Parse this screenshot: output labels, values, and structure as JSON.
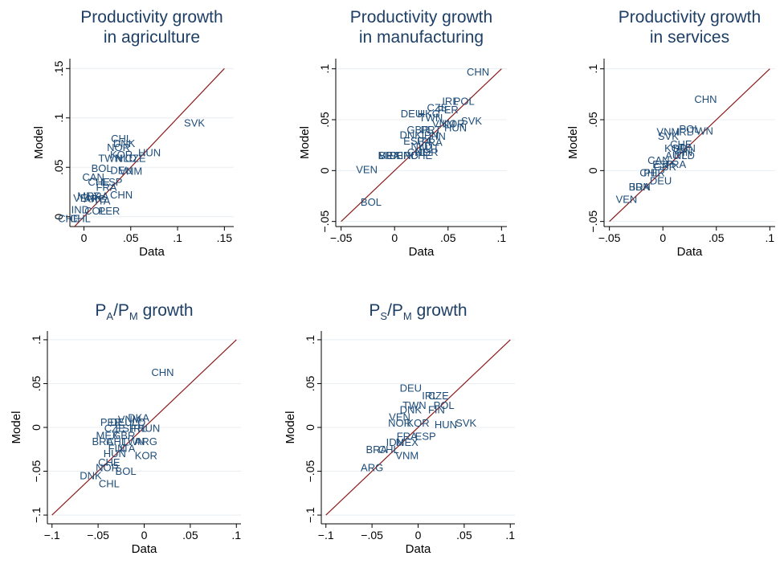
{
  "chart_data": [
    {
      "type": "scatter",
      "title": [
        "Productivity growth",
        "in agriculture"
      ],
      "xlabel": "Data",
      "ylabel": "Model",
      "xlim": [
        -0.015,
        0.16
      ],
      "ylim": [
        -0.01,
        0.16
      ],
      "xticks": [
        0,
        0.05,
        0.1,
        0.15
      ],
      "xtick_labels": [
        "0",
        ".05",
        ".1",
        ".15"
      ],
      "yticks": [
        0,
        0.05,
        0.1,
        0.15
      ],
      "ytick_labels": [
        "0",
        ".05",
        ".1",
        ".15"
      ],
      "fit_line": [
        [
          -0.01,
          -0.01
        ],
        [
          0.15,
          0.15
        ]
      ],
      "grid": true,
      "points": [
        {
          "label": "SVK",
          "x": 0.118,
          "y": 0.095
        },
        {
          "label": "HUN",
          "x": 0.07,
          "y": 0.065
        },
        {
          "label": "CHL",
          "x": 0.04,
          "y": 0.079
        },
        {
          "label": "DNK",
          "x": 0.043,
          "y": 0.074
        },
        {
          "label": "NOR",
          "x": 0.037,
          "y": 0.07
        },
        {
          "label": "KOR",
          "x": 0.04,
          "y": 0.063
        },
        {
          "label": "TWN",
          "x": 0.028,
          "y": 0.059
        },
        {
          "label": "NLD",
          "x": 0.045,
          "y": 0.059
        },
        {
          "label": "CZE",
          "x": 0.055,
          "y": 0.059
        },
        {
          "label": "BOL",
          "x": 0.019,
          "y": 0.049
        },
        {
          "label": "DEU",
          "x": 0.04,
          "y": 0.047
        },
        {
          "label": "VNM",
          "x": 0.05,
          "y": 0.046
        },
        {
          "label": "CAN",
          "x": 0.01,
          "y": 0.04
        },
        {
          "label": "CHE",
          "x": 0.016,
          "y": 0.035
        },
        {
          "label": "ESP",
          "x": 0.03,
          "y": 0.035
        },
        {
          "label": "FRA",
          "x": 0.024,
          "y": 0.03
        },
        {
          "label": "CHN",
          "x": 0.04,
          "y": 0.022
        },
        {
          "label": "MEX",
          "x": 0.005,
          "y": 0.021
        },
        {
          "label": "BRA",
          "x": 0.015,
          "y": 0.021
        },
        {
          "label": "VEN",
          "x": 0.0,
          "y": 0.019
        },
        {
          "label": "ARG",
          "x": 0.012,
          "y": 0.018
        },
        {
          "label": "ITA",
          "x": 0.02,
          "y": 0.016
        },
        {
          "label": "IND",
          "x": -0.004,
          "y": 0.007
        },
        {
          "label": "COL",
          "x": 0.012,
          "y": 0.006
        },
        {
          "label": "PER",
          "x": 0.027,
          "y": 0.006
        },
        {
          "label": "CHE",
          "x": -0.016,
          "y": -0.002
        },
        {
          "label": "CHL",
          "x": -0.004,
          "y": -0.002
        }
      ]
    },
    {
      "type": "scatter",
      "title": [
        "Productivity growth",
        "in manufacturing"
      ],
      "xlabel": "Data",
      "ylabel": "Model",
      "xlim": [
        -0.055,
        0.105
      ],
      "ylim": [
        -0.055,
        0.11
      ],
      "xticks": [
        -0.05,
        0,
        0.05,
        0.1
      ],
      "xtick_labels": [
        "−.05",
        "0",
        ".05",
        ".1"
      ],
      "yticks": [
        -0.05,
        0,
        0.05,
        0.1
      ],
      "ytick_labels": [
        "−.05",
        "0",
        ".05",
        ".1"
      ],
      "fit_line": [
        [
          -0.05,
          -0.05
        ],
        [
          0.1,
          0.1
        ]
      ],
      "grid": true,
      "points": [
        {
          "label": "CHN",
          "x": 0.078,
          "y": 0.097
        },
        {
          "label": "IRL",
          "x": 0.052,
          "y": 0.068
        },
        {
          "label": "POL",
          "x": 0.065,
          "y": 0.068
        },
        {
          "label": "CZE",
          "x": 0.04,
          "y": 0.062
        },
        {
          "label": "FER",
          "x": 0.05,
          "y": 0.06
        },
        {
          "label": "DEU",
          "x": 0.016,
          "y": 0.056
        },
        {
          "label": "HKG",
          "x": 0.032,
          "y": 0.056
        },
        {
          "label": "TWN",
          "x": 0.034,
          "y": 0.052
        },
        {
          "label": "SVK",
          "x": 0.072,
          "y": 0.049
        },
        {
          "label": "KOR",
          "x": 0.055,
          "y": 0.046
        },
        {
          "label": "VNM",
          "x": 0.046,
          "y": 0.046
        },
        {
          "label": "HUN",
          "x": 0.057,
          "y": 0.042
        },
        {
          "label": "GBR",
          "x": 0.022,
          "y": 0.04
        },
        {
          "label": "PRT",
          "x": 0.034,
          "y": 0.04
        },
        {
          "label": "DNK",
          "x": 0.015,
          "y": 0.035
        },
        {
          "label": "JPN",
          "x": 0.032,
          "y": 0.035
        },
        {
          "label": "FIN",
          "x": 0.04,
          "y": 0.034
        },
        {
          "label": "ESP",
          "x": 0.018,
          "y": 0.029
        },
        {
          "label": "ITA",
          "x": 0.028,
          "y": 0.029
        },
        {
          "label": "FRA",
          "x": 0.035,
          "y": 0.028
        },
        {
          "label": "NLD",
          "x": 0.025,
          "y": 0.024
        },
        {
          "label": "AUT",
          "x": 0.032,
          "y": 0.022
        },
        {
          "label": "CHE",
          "x": 0.022,
          "y": 0.018
        },
        {
          "label": "NOR",
          "x": 0.03,
          "y": 0.018
        },
        {
          "label": "MEX",
          "x": -0.005,
          "y": 0.015
        },
        {
          "label": "BRA",
          "x": -0.005,
          "y": 0.015
        },
        {
          "label": "PER",
          "x": 0.005,
          "y": 0.015
        },
        {
          "label": "IND",
          "x": 0.014,
          "y": 0.015
        },
        {
          "label": "CHE",
          "x": 0.025,
          "y": 0.015
        },
        {
          "label": "VEN",
          "x": -0.026,
          "y": 0.001
        },
        {
          "label": "BOL",
          "x": -0.022,
          "y": -0.031
        }
      ]
    },
    {
      "type": "scatter",
      "title": [
        "Productivity growth",
        "in services"
      ],
      "xlabel": "Data",
      "ylabel": "Model",
      "xlim": [
        -0.055,
        0.105
      ],
      "ylim": [
        -0.055,
        0.11
      ],
      "xticks": [
        -0.05,
        0,
        0.05,
        0.1
      ],
      "xtick_labels": [
        "−.05",
        "0",
        ".05",
        ".1"
      ],
      "yticks": [
        -0.05,
        0,
        0.05,
        0.1
      ],
      "ytick_labels": [
        "−.05",
        "0",
        ".05",
        ".1"
      ],
      "fit_line": [
        [
          -0.05,
          -0.05
        ],
        [
          0.1,
          0.1
        ]
      ],
      "grid": true,
      "points": [
        {
          "label": "CHN",
          "x": 0.04,
          "y": 0.07
        },
        {
          "label": "POL",
          "x": 0.025,
          "y": 0.041
        },
        {
          "label": "TWN",
          "x": 0.036,
          "y": 0.039
        },
        {
          "label": "VNM",
          "x": 0.005,
          "y": 0.038
        },
        {
          "label": "IRL",
          "x": 0.02,
          "y": 0.038
        },
        {
          "label": "SVK",
          "x": 0.005,
          "y": 0.034
        },
        {
          "label": "CHE",
          "x": 0.017,
          "y": 0.026
        },
        {
          "label": "KOR",
          "x": 0.012,
          "y": 0.022
        },
        {
          "label": "HUN",
          "x": 0.02,
          "y": 0.022
        },
        {
          "label": "FIN",
          "x": 0.02,
          "y": 0.018
        },
        {
          "label": "AUT",
          "x": 0.012,
          "y": 0.015
        },
        {
          "label": "NLD",
          "x": 0.02,
          "y": 0.015
        },
        {
          "label": "CAN",
          "x": -0.004,
          "y": 0.01
        },
        {
          "label": "ESP",
          "x": 0.0,
          "y": 0.006
        },
        {
          "label": "FRA",
          "x": 0.012,
          "y": 0.006
        },
        {
          "label": "GBR",
          "x": 0.002,
          "y": 0.004
        },
        {
          "label": "CHL",
          "x": -0.012,
          "y": -0.002
        },
        {
          "label": "PER",
          "x": -0.008,
          "y": -0.002
        },
        {
          "label": "DEU",
          "x": -0.002,
          "y": -0.01
        },
        {
          "label": "BRA",
          "x": -0.022,
          "y": -0.016
        },
        {
          "label": "IDN",
          "x": -0.02,
          "y": -0.016
        },
        {
          "label": "VEN",
          "x": -0.034,
          "y": -0.028
        }
      ]
    },
    {
      "type": "scatter",
      "title": [
        "P",
        "A",
        "/P",
        "M",
        " growth"
      ],
      "xlabel": "Data",
      "ylabel": "Model",
      "xlim": [
        -0.105,
        0.105
      ],
      "ylim": [
        -0.11,
        0.11
      ],
      "xticks": [
        -0.1,
        -0.05,
        0,
        0.05,
        0.1
      ],
      "xtick_labels": [
        "−.1",
        "−.05",
        "0",
        ".05",
        ".1"
      ],
      "yticks": [
        -0.1,
        -0.05,
        0,
        0.05,
        0.1
      ],
      "ytick_labels": [
        "−.1",
        "−.05",
        "0",
        ".05",
        ".1"
      ],
      "fit_line": [
        [
          -0.1,
          -0.1
        ],
        [
          0.1,
          0.1
        ]
      ],
      "grid": true,
      "points": [
        {
          "label": "CHN",
          "x": 0.02,
          "y": 0.063
        },
        {
          "label": "VNM",
          "x": -0.016,
          "y": 0.009
        },
        {
          "label": "DKA",
          "x": -0.006,
          "y": 0.011
        },
        {
          "label": "PER",
          "x": -0.036,
          "y": 0.006
        },
        {
          "label": "DEU",
          "x": -0.025,
          "y": 0.006
        },
        {
          "label": "LO",
          "x": -0.006,
          "y": 0.006
        },
        {
          "label": "CZE",
          "x": -0.032,
          "y": -0.001
        },
        {
          "label": "ESP",
          "x": -0.02,
          "y": -0.001
        },
        {
          "label": "IRL",
          "x": -0.006,
          "y": -0.001
        },
        {
          "label": "HUN",
          "x": 0.005,
          "y": -0.001
        },
        {
          "label": "MEX",
          "x": -0.04,
          "y": -0.009
        },
        {
          "label": "GBR",
          "x": -0.022,
          "y": -0.009
        },
        {
          "label": "BRA",
          "x": -0.045,
          "y": -0.016
        },
        {
          "label": "CHL",
          "x": -0.03,
          "y": -0.016
        },
        {
          "label": "TWN",
          "x": -0.012,
          "y": -0.016
        },
        {
          "label": "ARG",
          "x": 0.002,
          "y": -0.016
        },
        {
          "label": "FIN",
          "x": -0.03,
          "y": -0.024
        },
        {
          "label": "ITA",
          "x": -0.018,
          "y": -0.024
        },
        {
          "label": "HUN",
          "x": -0.032,
          "y": -0.03
        },
        {
          "label": "KOR",
          "x": 0.002,
          "y": -0.032
        },
        {
          "label": "CHE",
          "x": -0.038,
          "y": -0.04
        },
        {
          "label": "NOR",
          "x": -0.04,
          "y": -0.046
        },
        {
          "label": "BOL",
          "x": -0.02,
          "y": -0.05
        },
        {
          "label": "DNK",
          "x": -0.058,
          "y": -0.055
        },
        {
          "label": "CHL",
          "x": -0.038,
          "y": -0.064
        }
      ]
    },
    {
      "type": "scatter",
      "title": [
        "P",
        "S",
        "/P",
        "M",
        " growth"
      ],
      "xlabel": "Data",
      "ylabel": "Model",
      "xlim": [
        -0.105,
        0.105
      ],
      "ylim": [
        -0.11,
        0.11
      ],
      "xticks": [
        -0.1,
        -0.05,
        0,
        0.05,
        0.1
      ],
      "xtick_labels": [
        "−.1",
        "−.05",
        "0",
        ".05",
        ".1"
      ],
      "yticks": [
        -0.1,
        -0.05,
        0,
        0.05,
        0.1
      ],
      "ytick_labels": [
        "−.1",
        "−.05",
        "0",
        ".05",
        ".1"
      ],
      "fit_line": [
        [
          -0.1,
          -0.1
        ],
        [
          0.1,
          0.1
        ]
      ],
      "grid": true,
      "points": [
        {
          "label": "DEU",
          "x": -0.008,
          "y": 0.045
        },
        {
          "label": "IRL",
          "x": 0.013,
          "y": 0.036
        },
        {
          "label": "CZE",
          "x": 0.022,
          "y": 0.036
        },
        {
          "label": "TWN",
          "x": -0.004,
          "y": 0.025
        },
        {
          "label": "POL",
          "x": 0.028,
          "y": 0.025
        },
        {
          "label": "DNK",
          "x": -0.008,
          "y": 0.02
        },
        {
          "label": "FIN",
          "x": 0.02,
          "y": 0.02
        },
        {
          "label": "VEN",
          "x": -0.02,
          "y": 0.012
        },
        {
          "label": "SVK",
          "x": 0.052,
          "y": 0.005
        },
        {
          "label": "NOR",
          "x": -0.02,
          "y": 0.005
        },
        {
          "label": "KOR",
          "x": 0.0,
          "y": 0.005
        },
        {
          "label": "HUN",
          "x": 0.03,
          "y": 0.003
        },
        {
          "label": "FRA",
          "x": -0.012,
          "y": -0.01
        },
        {
          "label": "ESP",
          "x": 0.008,
          "y": -0.01
        },
        {
          "label": "IDN",
          "x": -0.025,
          "y": -0.017
        },
        {
          "label": "MEX",
          "x": -0.012,
          "y": -0.017
        },
        {
          "label": "BRA",
          "x": -0.045,
          "y": -0.025
        },
        {
          "label": "CHL",
          "x": -0.032,
          "y": -0.025
        },
        {
          "label": "VNM",
          "x": -0.012,
          "y": -0.032
        },
        {
          "label": "ARG",
          "x": -0.05,
          "y": -0.046
        }
      ]
    }
  ]
}
